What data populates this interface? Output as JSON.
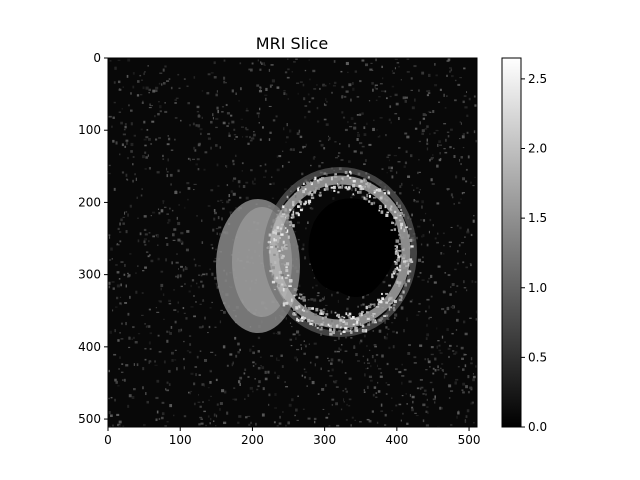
{
  "chart_data": [
    {
      "type": "heatmap",
      "title": "MRI Slice",
      "xlabel": "",
      "ylabel": "",
      "x_ticks": [
        0,
        100,
        200,
        300,
        400,
        500
      ],
      "y_ticks": [
        0,
        100,
        200,
        300,
        400,
        500
      ],
      "xlim": [
        0,
        511
      ],
      "ylim": [
        511,
        0
      ],
      "colormap": "gray",
      "grid": false,
      "colorbar": {
        "vmin": 0.0,
        "vmax": 2.65,
        "ticks": [
          0.0,
          0.5,
          1.0,
          1.5,
          2.0,
          2.5
        ],
        "tick_labels": [
          "0.0",
          "0.5",
          "1.0",
          "1.5",
          "2.0",
          "2.5"
        ],
        "placement": "right"
      }
    }
  ]
}
